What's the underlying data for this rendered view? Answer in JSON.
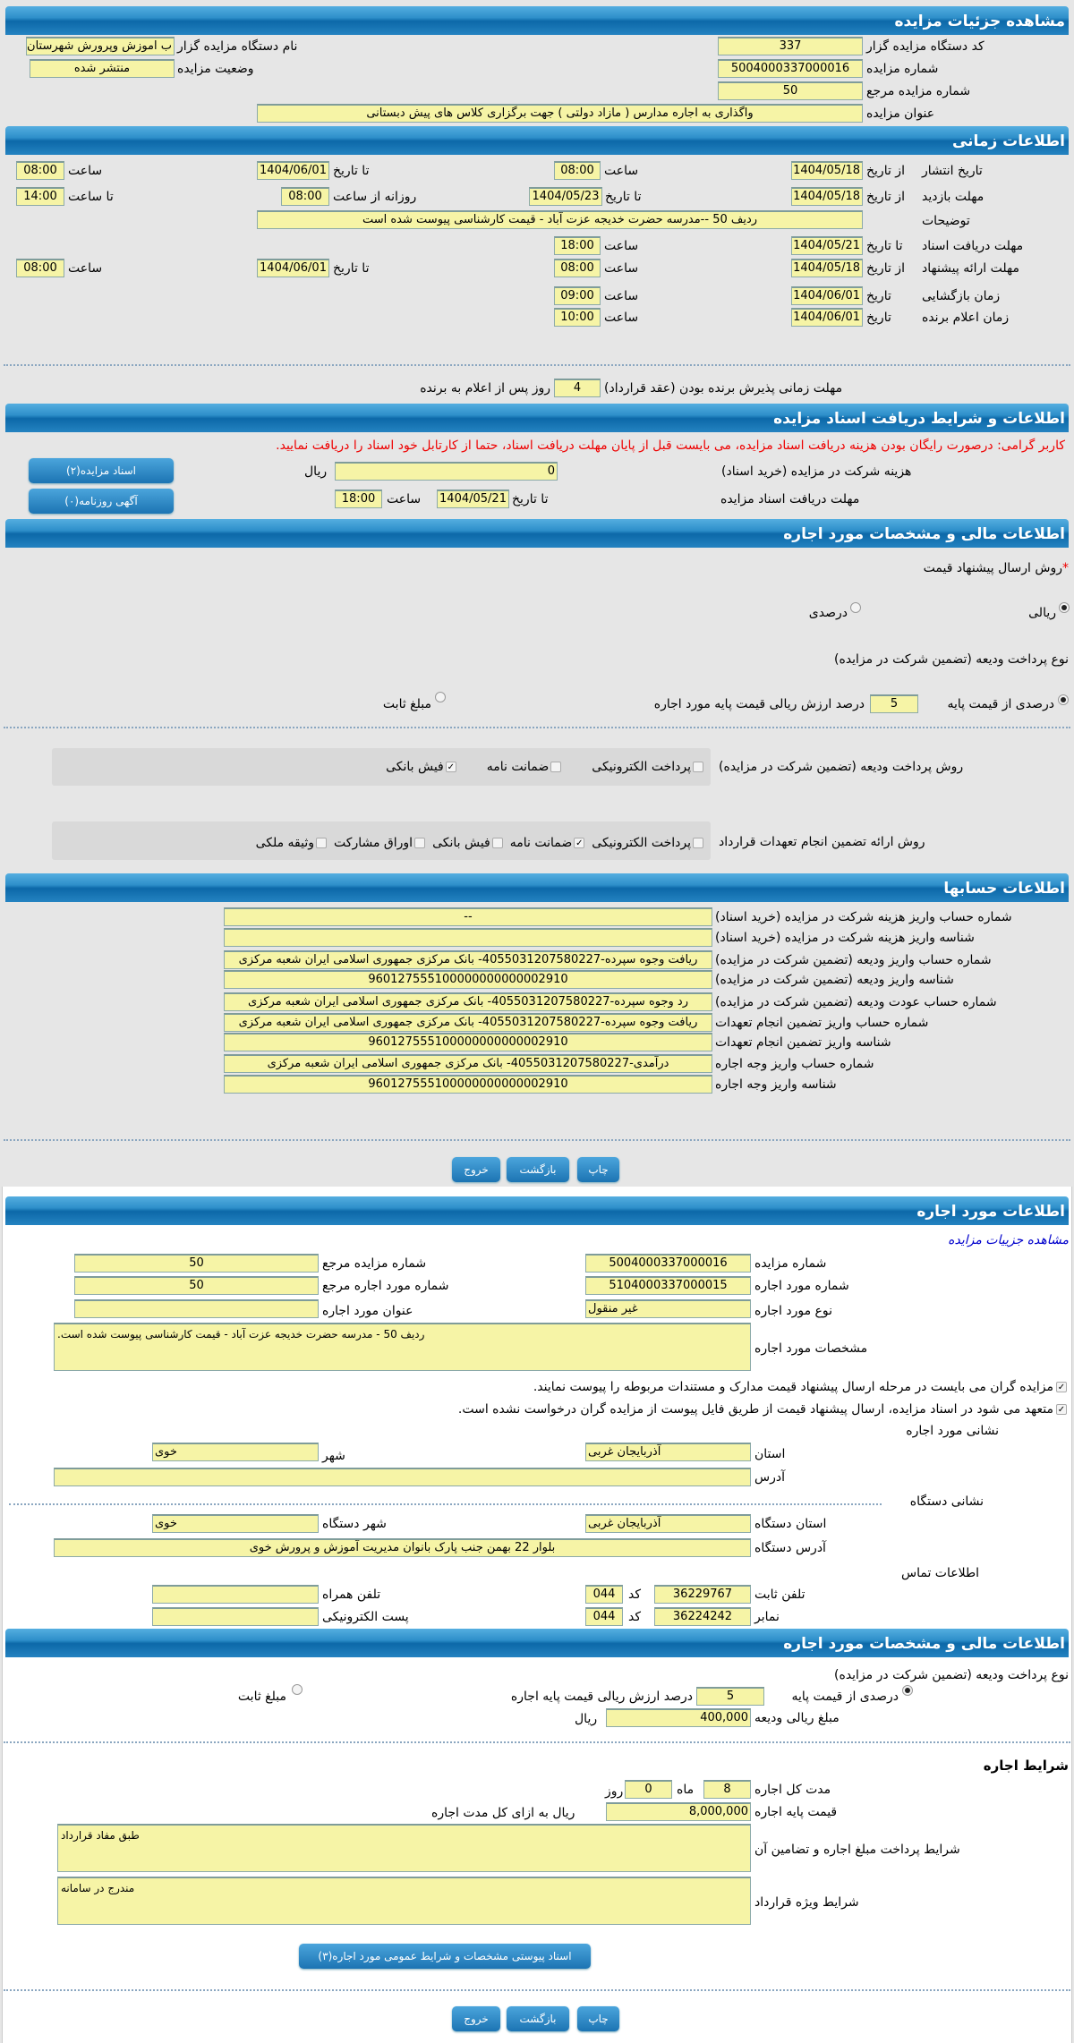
{
  "auction": {
    "header": "مشاهده جزئیات مزایده",
    "org_code_label": "کد دستگاه مزایده گزار",
    "org_code": "337",
    "org_name_label": "نام دستگاه مزایده گزار",
    "org_name": "ب اموزش وپرورش شهرستان",
    "number_label": "شماره مزایده",
    "number": "5004000337000016",
    "status_label": "وضعیت مزایده",
    "status": "منتشر شده",
    "ref_label": "شماره مزایده مرجع",
    "ref": "50",
    "title_label": "عنوان مزایده",
    "title": "واگذاری به اجاره مدارس ( مازاد دولتی ) جهت برگزاری کلاس های پیش دبستانی"
  },
  "timing": {
    "header": "اطلاعات زمانی",
    "publish": {
      "label": "تاریخ انتشار",
      "from_label": "از تاریخ",
      "from": "1404/05/18",
      "time_label": "ساعت",
      "time": "08:00",
      "to_label": "تا تاریخ",
      "to": "1404/06/01",
      "to_time_label": "ساعت",
      "to_time": "08:00"
    },
    "visit": {
      "label": "مهلت بازدید",
      "from_label": "از تاریخ",
      "from": "1404/05/18",
      "to_label": "تا تاریخ",
      "to": "1404/05/23",
      "daily_label": "روزانه از ساعت",
      "daily_from": "08:00",
      "to_time_label": "تا ساعت",
      "to_time": "14:00"
    },
    "desc_label": "توضیحات",
    "desc": "ردیف 50 --مدرسه حضرت خدیجه عزت آباد   - قیمت کارشناسی پیوست شده است",
    "docs": {
      "label": "مهلت دریافت اسناد",
      "to_label": "تا تاریخ",
      "to": "1404/05/21",
      "time_label": "ساعت",
      "time": "18:00"
    },
    "offer": {
      "label": "مهلت ارائه پیشنهاد",
      "from_label": "از تاریخ",
      "from": "1404/05/18",
      "time_label": "ساعت",
      "time": "08:00",
      "to_label": "تا تاریخ",
      "to": "1404/06/01",
      "to_time_label": "ساعت",
      "to_time": "08:00"
    },
    "opening": {
      "label": "زمان بازگشایی",
      "date_label": "تاریخ",
      "date": "1404/06/01",
      "time_label": "ساعت",
      "time": "09:00"
    },
    "winner": {
      "label": "زمان اعلام برنده",
      "date_label": "تاریخ",
      "date": "1404/06/01",
      "time_label": "ساعت",
      "time": "10:00"
    },
    "acceptance": {
      "label": "مهلت زمانی پذیرش برنده بودن (عقد قرارداد)",
      "days": "4",
      "suffix": "روز پس از اعلام به برنده"
    }
  },
  "documents": {
    "header": "اطلاعات و شرایط دریافت اسناد مزایده",
    "notice": "کاربر گرامی: درصورت رایگان بودن هزینه دریافت اسناد مزایده، می بایست قبل از پایان مهلت دریافت اسناد، حتما از کارتابل خود اسناد را دریافت نمایید.",
    "fee_label": "هزینه شرکت در مزایده (خرید اسناد)",
    "fee": "0",
    "currency": "ریال",
    "deadline_label": "مهلت دریافت اسناد مزایده",
    "to_label": "تا تاریخ",
    "to": "1404/05/21",
    "time_label": "ساعت",
    "time": "18:00",
    "docs_button": "اسناد مزایده(۲)",
    "ads_button": "آگهی روزنامه(۰)"
  },
  "finance": {
    "header": "اطلاعات مالی و مشخصات مورد اجاره",
    "method_label": "روش ارسال پیشنهاد قیمت",
    "required_mark": "*",
    "method_rial": "ریالی",
    "method_percent": "درصدی",
    "method_selected": "ریالی",
    "deposit_type_label": "نوع پرداخت ودیعه (تضمین شرکت در مزایده)",
    "percent_label": "درصدی از قیمت پایه",
    "percent": "5",
    "percent_suffix": "درصد ارزش ریالی قیمت پایه مورد اجاره",
    "fixed_label": "مبلغ ثابت",
    "deposit_type_selected": "درصدی از قیمت پایه",
    "deposit_method_label": "روش پرداخت ودیعه (تضمین شرکت در مزایده)",
    "deposit_methods": [
      {
        "label": "پرداخت الکترونیکی",
        "checked": false
      },
      {
        "label": "ضمانت نامه",
        "checked": false
      },
      {
        "label": "فیش بانکی",
        "checked": true
      }
    ],
    "guarantee_label": "روش ارائه تضمین انجام تعهدات قرارداد",
    "guarantees": [
      {
        "label": "پرداخت الکترونیکی",
        "checked": false
      },
      {
        "label": "ضمانت نامه",
        "checked": true
      },
      {
        "label": "فیش بانکی",
        "checked": false
      },
      {
        "label": "اوراق مشارکت",
        "checked": false
      },
      {
        "label": "وثیقه ملکی",
        "checked": false
      }
    ]
  },
  "accounts": {
    "header": "اطلاعات حسابها",
    "rows": [
      {
        "label": "شماره حساب واریز هزینه شرکت در مزایده (خرید اسناد)",
        "value": "--"
      },
      {
        "label": "شناسه واریز هزینه شرکت در مزایده (خرید اسناد)",
        "value": ""
      },
      {
        "label": "شماره حساب واریز ودیعه (تضمین شرکت در مزایده)",
        "value": "ریافت وجوه سپرده-4055031207580227- بانک مرکزی جمهوری اسلامی ایران شعبه مرکزی"
      },
      {
        "label": "شناسه واریز ودیعه (تضمین شرکت در مزایده)",
        "value": "960127555100000000000002910"
      },
      {
        "label": "شماره حساب عودت ودیعه (تضمین شرکت در مزایده)",
        "value": "رد وجوه سپرده-4055031207580227- بانک مرکزی جمهوری اسلامی ایران شعبه مرکزی"
      },
      {
        "label": "شماره حساب واریز تضمین انجام تعهدات",
        "value": "ریافت وجوه سپرده-4055031207580227- بانک مرکزی جمهوری اسلامی ایران شعبه مرکزی"
      },
      {
        "label": "شناسه واریز تضمین انجام تعهدات",
        "value": "960127555100000000000002910"
      },
      {
        "label": "شماره حساب واریز وجه اجاره",
        "value": "درآمدی-4055031207580227- بانک مرکزی جمهوری اسلامی ایران شعبه مرکزی"
      },
      {
        "label": "شناسه واریز وجه اجاره",
        "value": "960127555100000000000002910"
      }
    ]
  },
  "actions": {
    "print": "چاپ",
    "back": "بازگشت",
    "exit": "خروج"
  },
  "lease": {
    "header": "اطلاعات مورد اجاره",
    "link": "مشاهده جزییات مزایده",
    "auction_no_label": "شماره مزایده",
    "auction_no": "5004000337000016",
    "ref_label": "شماره مزایده مرجع",
    "ref": "50",
    "item_no_label": "شماره مورد اجاره",
    "item_no": "5104000337000015",
    "item_ref_label": "شماره مورد اجاره مرجع",
    "item_ref": "50",
    "type_label": "نوع مورد اجاره",
    "type": "غیر منقول",
    "title_label": "عنوان مورد اجاره",
    "title": "",
    "spec_label": "مشخصات مورد اجاره",
    "spec": "ردیف 50 - مدرسه حضرت خدیجه عزت آباد   - قیمت کارشناسی پیوست شده است.",
    "checks": [
      {
        "label": "مزایده گران می بایست در مرحله ارسال پیشنهاد قیمت مدارک و مستندات مربوطه را پیوست نمایند.",
        "checked": true
      },
      {
        "label": "متعهد می شود در اسناد مزایده، ارسال پیشنهاد قیمت از طریق فایل پیوست از مزایده گران درخواست نشده است.",
        "checked": true
      }
    ],
    "address_heading": "نشانی مورد اجاره",
    "province_label": "استان",
    "province": "آذربایجان غربی",
    "city_label": "شهر",
    "city": "خوی",
    "address_label": "آدرس",
    "address": "",
    "org_address_heading": "نشانی دستگاه",
    "org_province_label": "استان دستگاه",
    "org_province": "آذربایجان غربی",
    "org_city_label": "شهر دستگاه",
    "org_city": "خوی",
    "org_address_label": "آدرس دستگاه",
    "org_address": "بلوار 22 بهمن جنب پارک بانوان مدیریت آموزش و پرورش خوی",
    "contact_heading": "اطلاعات تماس",
    "phone_label": "تلفن ثابت",
    "phone": "36229767",
    "code_label": "کد",
    "phone_code": "044",
    "mobile_label": "تلفن همراه",
    "mobile": "",
    "fax_label": "نمابر",
    "fax": "36224242",
    "fax_code": "044",
    "email_label": "پست الکترونیکی",
    "email": ""
  },
  "lease_finance": {
    "header": "اطلاعات مالی و مشخصات مورد اجاره",
    "deposit_type_label": "نوع پرداخت ودیعه (تضمین شرکت در مزایده)",
    "percent_label": "درصدی از قیمت پایه",
    "percent": "5",
    "percent_suffix": "درصد ارزش ریالی قیمت پایه اجاره",
    "fixed_label": "مبلغ ثابت",
    "amount_label": "مبلغ ریالی ودیعه",
    "amount": "400,000",
    "currency": "ریال",
    "terms_heading": "شرایط اجاره",
    "duration_label": "مدت کل اجاره",
    "months": "8",
    "month_label": "ماه",
    "days": "0",
    "day_label": "روز",
    "base_price_label": "قیمت پایه اجاره",
    "base_price": "8,000,000",
    "base_price_suffix": "ریال به ازای کل مدت اجاره",
    "payment_terms_label": "شرایط پرداخت مبلغ اجاره و تضامین آن",
    "payment_terms": "طبق مفاد قرارداد",
    "special_terms_label": "شرایط ویژه قرارداد",
    "special_terms": "مندرج در سامانه",
    "attachment_button": "اسناد پیوستی مشخصات و شرایط عمومی مورد اجاره(۳)"
  },
  "colors": {
    "header": "#0c68a8",
    "input_bg": "#f6f4a6",
    "notice": "#ee0000",
    "link": "#0000cc"
  }
}
